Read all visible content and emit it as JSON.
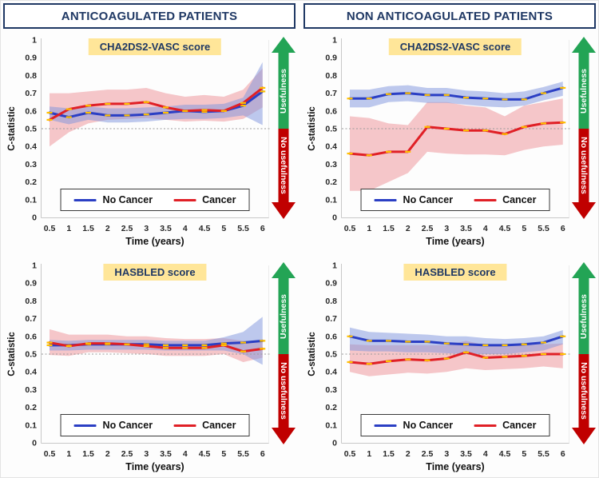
{
  "ui": {
    "headers": [
      "ANTICOAGULATED PATIENTS",
      "NON ANTICOAGULATED PATIENTS"
    ],
    "y_axis_label": "C-statistic",
    "x_axis_label": "Time (years)",
    "arrow_up_label": "Usefulness",
    "arrow_down_label": "No usefulness",
    "x_tick_labels": [
      "0.5",
      "1",
      "1.5",
      "2",
      "2.5",
      "3",
      "3.5",
      "4",
      "4.5",
      "5",
      "5.5",
      "6"
    ],
    "y_tick_labels": [
      "0",
      "0.1",
      "0.2",
      "0.3",
      "0.4",
      "0.5",
      "0.6",
      "0.7",
      "0.8",
      "0.9",
      "1"
    ],
    "colors": {
      "header_text": "#1f3864",
      "header_border": "#1f3864",
      "score_badge_bg": "#ffe699",
      "score_badge_text": "#1f3864",
      "no_cancer_line": "#2b3fc4",
      "cancer_line": "#e02026",
      "marker": "#ffc000",
      "no_cancer_band": "#7e93dd",
      "cancer_band": "#ee8f96",
      "usefulness_green": "#23a455",
      "no_usefulness_red": "#c00000",
      "threshold_line": "#9a9a9a",
      "axis_line": "#c8c8c8"
    }
  },
  "chart_data": [
    {
      "type": "line",
      "panel": "ANTICOAGULATED PATIENTS",
      "score_label": "CHA2DS2-VASC score",
      "xlabel": "Time (years)",
      "ylabel": "C-statistic",
      "ylim": [
        0,
        1
      ],
      "threshold": 0.5,
      "legend_position": "bottom-center",
      "x": [
        0.5,
        1,
        1.5,
        2,
        2.5,
        3,
        3.5,
        4,
        4.5,
        5,
        5.5,
        6
      ],
      "series": [
        {
          "name": "No Cancer",
          "values": [
            0.59,
            0.565,
            0.59,
            0.575,
            0.575,
            0.58,
            0.59,
            0.6,
            0.595,
            0.6,
            0.63,
            0.71
          ],
          "ci_upper": [
            0.625,
            0.615,
            0.625,
            0.615,
            0.615,
            0.62,
            0.625,
            0.635,
            0.635,
            0.64,
            0.675,
            0.875
          ],
          "ci_lower": [
            0.55,
            0.525,
            0.55,
            0.535,
            0.535,
            0.54,
            0.55,
            0.555,
            0.555,
            0.56,
            0.575,
            0.52
          ]
        },
        {
          "name": "Cancer",
          "values": [
            0.55,
            0.61,
            0.63,
            0.64,
            0.64,
            0.65,
            0.62,
            0.6,
            0.605,
            0.6,
            0.645,
            0.73
          ],
          "ci_upper": [
            0.7,
            0.7,
            0.71,
            0.72,
            0.72,
            0.73,
            0.7,
            0.68,
            0.69,
            0.68,
            0.72,
            0.84
          ],
          "ci_lower": [
            0.4,
            0.48,
            0.53,
            0.55,
            0.555,
            0.56,
            0.55,
            0.54,
            0.545,
            0.54,
            0.555,
            0.62
          ]
        }
      ]
    },
    {
      "type": "line",
      "panel": "NON ANTICOAGULATED PATIENTS",
      "score_label": "CHA2DS2-VASC score",
      "xlabel": "Time (years)",
      "ylabel": "C-statistic",
      "ylim": [
        0,
        1
      ],
      "threshold": 0.5,
      "legend_position": "bottom-center",
      "x": [
        0.5,
        1,
        1.5,
        2,
        2.5,
        3,
        3.5,
        4,
        4.5,
        5,
        5.5,
        6
      ],
      "series": [
        {
          "name": "No Cancer",
          "values": [
            0.67,
            0.67,
            0.695,
            0.7,
            0.69,
            0.69,
            0.675,
            0.67,
            0.665,
            0.665,
            0.7,
            0.73
          ],
          "ci_upper": [
            0.72,
            0.72,
            0.74,
            0.745,
            0.73,
            0.73,
            0.715,
            0.71,
            0.7,
            0.71,
            0.735,
            0.765
          ],
          "ci_lower": [
            0.62,
            0.62,
            0.65,
            0.655,
            0.645,
            0.645,
            0.635,
            0.625,
            0.62,
            0.63,
            0.66,
            0.685
          ]
        },
        {
          "name": "Cancer",
          "values": [
            0.36,
            0.35,
            0.37,
            0.37,
            0.51,
            0.5,
            0.49,
            0.49,
            0.47,
            0.51,
            0.53,
            0.535
          ],
          "ci_upper": [
            0.57,
            0.56,
            0.53,
            0.52,
            0.65,
            0.65,
            0.63,
            0.62,
            0.57,
            0.63,
            0.65,
            0.67
          ],
          "ci_lower": [
            0.15,
            0.15,
            0.2,
            0.25,
            0.37,
            0.36,
            0.355,
            0.355,
            0.35,
            0.38,
            0.4,
            0.41
          ]
        }
      ]
    },
    {
      "type": "line",
      "panel": "ANTICOAGULATED PATIENTS",
      "score_label": "HASBLED score",
      "xlabel": "Time (years)",
      "ylabel": "C-statistic",
      "ylim": [
        0,
        1
      ],
      "threshold": 0.5,
      "legend_position": "bottom-center",
      "x": [
        0.5,
        1,
        1.5,
        2,
        2.5,
        3,
        3.5,
        4,
        4.5,
        5,
        5.5,
        6
      ],
      "series": [
        {
          "name": "No Cancer",
          "values": [
            0.55,
            0.55,
            0.555,
            0.555,
            0.555,
            0.555,
            0.55,
            0.55,
            0.55,
            0.56,
            0.565,
            0.575
          ],
          "ci_upper": [
            0.58,
            0.575,
            0.58,
            0.58,
            0.58,
            0.58,
            0.575,
            0.575,
            0.575,
            0.595,
            0.625,
            0.71
          ],
          "ci_lower": [
            0.52,
            0.52,
            0.525,
            0.525,
            0.525,
            0.525,
            0.52,
            0.52,
            0.52,
            0.52,
            0.5,
            0.44
          ]
        },
        {
          "name": "Cancer",
          "values": [
            0.565,
            0.545,
            0.56,
            0.56,
            0.555,
            0.545,
            0.535,
            0.535,
            0.535,
            0.55,
            0.515,
            0.53
          ],
          "ci_upper": [
            0.64,
            0.61,
            0.61,
            0.61,
            0.6,
            0.6,
            0.59,
            0.585,
            0.585,
            0.59,
            0.575,
            0.57
          ],
          "ci_lower": [
            0.495,
            0.49,
            0.51,
            0.51,
            0.505,
            0.5,
            0.49,
            0.49,
            0.49,
            0.5,
            0.455,
            0.48
          ]
        }
      ]
    },
    {
      "type": "line",
      "panel": "NON ANTICOAGULATED PATIENTS",
      "score_label": "HASBLED score",
      "xlabel": "Time (years)",
      "ylabel": "C-statistic",
      "ylim": [
        0,
        1
      ],
      "threshold": 0.5,
      "legend_position": "bottom-center",
      "x": [
        0.5,
        1,
        1.5,
        2,
        2.5,
        3,
        3.5,
        4,
        4.5,
        5,
        5.5,
        6
      ],
      "series": [
        {
          "name": "No Cancer",
          "values": [
            0.6,
            0.575,
            0.575,
            0.57,
            0.57,
            0.56,
            0.555,
            0.55,
            0.55,
            0.555,
            0.565,
            0.6
          ],
          "ci_upper": [
            0.65,
            0.625,
            0.62,
            0.615,
            0.61,
            0.6,
            0.6,
            0.59,
            0.585,
            0.59,
            0.6,
            0.635
          ],
          "ci_lower": [
            0.52,
            0.515,
            0.515,
            0.51,
            0.51,
            0.505,
            0.5,
            0.5,
            0.5,
            0.51,
            0.52,
            0.555
          ]
        },
        {
          "name": "Cancer",
          "values": [
            0.455,
            0.445,
            0.46,
            0.47,
            0.465,
            0.475,
            0.51,
            0.48,
            0.485,
            0.49,
            0.5,
            0.5
          ],
          "ci_upper": [
            0.555,
            0.55,
            0.55,
            0.55,
            0.55,
            0.55,
            0.575,
            0.55,
            0.55,
            0.55,
            0.555,
            0.56
          ],
          "ci_lower": [
            0.4,
            0.375,
            0.385,
            0.395,
            0.39,
            0.4,
            0.42,
            0.41,
            0.415,
            0.42,
            0.43,
            0.42
          ]
        }
      ]
    }
  ]
}
